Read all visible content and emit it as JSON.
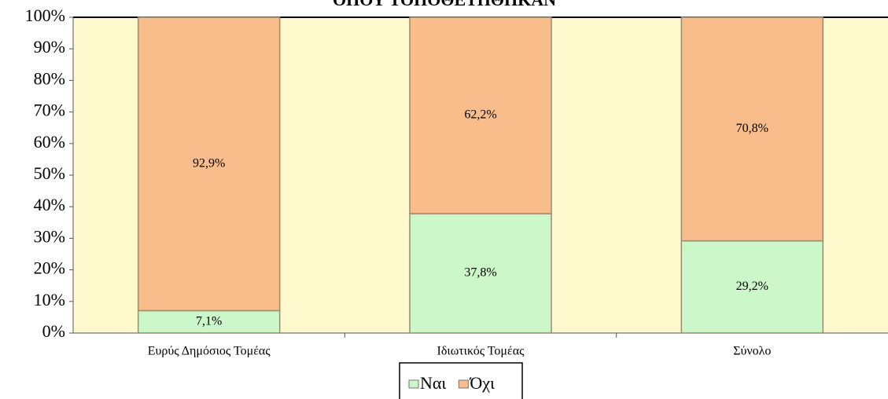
{
  "chart_data": {
    "type": "bar",
    "stacked": true,
    "title": "ΟΠΟΥ ΤΟΠΟΘΕΤΗΘΗΚΑΝ",
    "categories": [
      "Ευρύς Δημόσιος Τομέας",
      "Ιδιωτικός Τομέας",
      "Σύνολο"
    ],
    "series": [
      {
        "name": "Ναι",
        "color": "#ccf7c8",
        "values": [
          7.1,
          37.8,
          29.2
        ],
        "value_labels": [
          "7,1%",
          "37,8%",
          "29,2%"
        ]
      },
      {
        "name": "Όχι",
        "color": "#f8bd8a",
        "values": [
          92.9,
          62.2,
          70.8
        ],
        "value_labels": [
          "92,9%",
          "62,2%",
          "70,8%"
        ]
      }
    ],
    "ylim": [
      0,
      100
    ],
    "yticks": [
      {
        "value": 0,
        "label": "0%"
      },
      {
        "value": 10,
        "label": "10%"
      },
      {
        "value": 20,
        "label": "20%"
      },
      {
        "value": 30,
        "label": "30%"
      },
      {
        "value": 40,
        "label": "40%"
      },
      {
        "value": 50,
        "label": "50%"
      },
      {
        "value": 60,
        "label": "60%"
      },
      {
        "value": 70,
        "label": "70%"
      },
      {
        "value": 80,
        "label": "80%"
      },
      {
        "value": 90,
        "label": "90%"
      },
      {
        "value": 100,
        "label": "100%"
      }
    ],
    "legend": "bottom"
  }
}
